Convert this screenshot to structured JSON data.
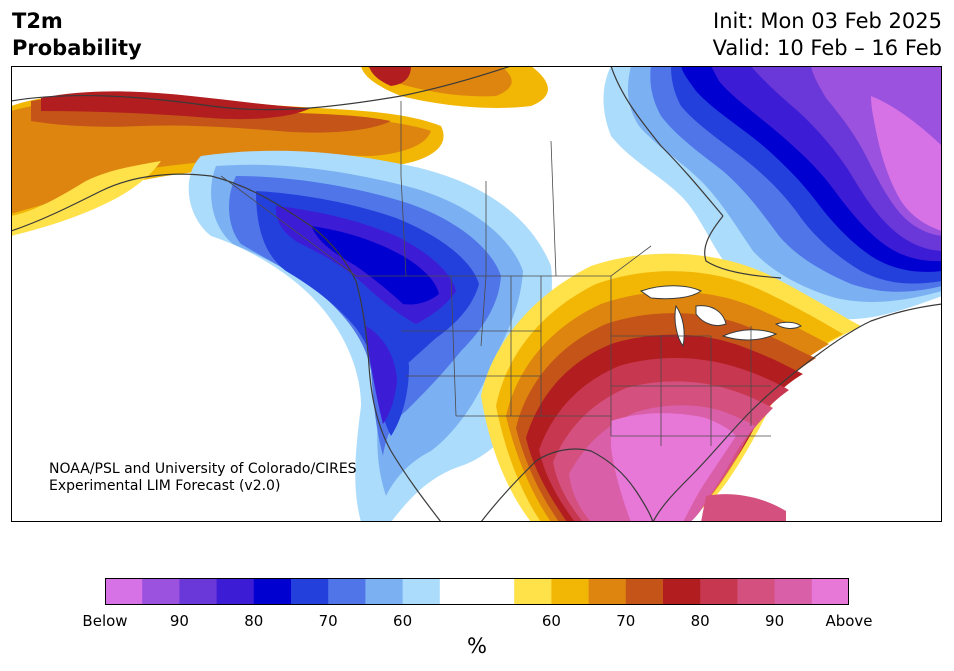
{
  "header": {
    "variable": "T2m",
    "product": "Probability",
    "init": "Init: Mon 03 Feb 2025",
    "valid": "Valid: 10 Feb – 16 Feb"
  },
  "credit": {
    "line1": "NOAA/PSL and University of Colorado/CIRES",
    "line2": "Experimental LIM Forecast (v2.0)"
  },
  "colorbar": {
    "below_colors": [
      "#d672e6",
      "#9b52de",
      "#6a38d8",
      "#3d1cd6",
      "#0000d0",
      "#2340dc",
      "#4f75e8",
      "#7bb1f3",
      "#acdcfb"
    ],
    "neutral_color": "#ffffff",
    "above_colors": [
      "#ffe14a",
      "#f2b705",
      "#dd850f",
      "#c45418",
      "#b21d20",
      "#c7374f",
      "#d4507e",
      "#d95fa9",
      "#e778d7"
    ],
    "tick_labels": [
      "Below",
      "90",
      "80",
      "70",
      "60",
      "60",
      "70",
      "80",
      "90",
      "Above"
    ],
    "unit": "%"
  },
  "map_colors": {
    "land_neutral": "#ffffff",
    "coast": "#3a3a3a",
    "border": "#4a4a4a"
  }
}
